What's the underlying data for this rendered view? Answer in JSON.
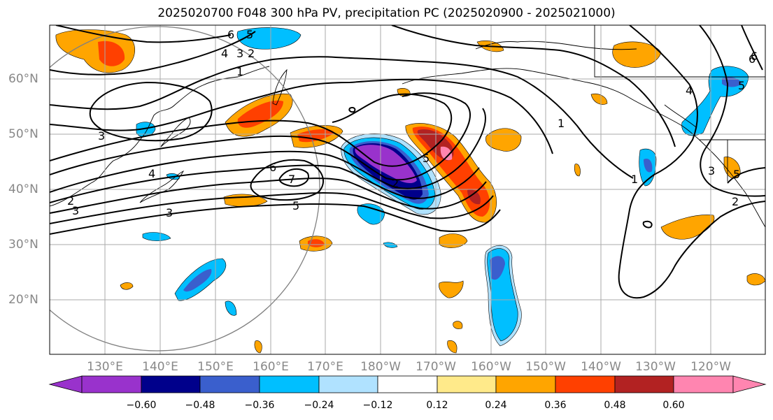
{
  "title": "2025020700 F048 300 hPa PV, precipitation PC (2025020900 - 2025021000)",
  "lat_labels": [
    "60°N",
    "50°N",
    "40°N",
    "30°N",
    "20°N"
  ],
  "lon_labels": [
    "130°E",
    "140°E",
    "150°E",
    "160°E",
    "170°E",
    "180°W",
    "170°W",
    "160°W",
    "150°W",
    "140°W",
    "130°W",
    "120°W"
  ],
  "colorbar": {
    "ticks": [
      "−0.60",
      "−0.48",
      "−0.36",
      "−0.24",
      "−0.12",
      "0.12",
      "0.24",
      "0.36",
      "0.48",
      "0.60"
    ],
    "colors": [
      "#9932cc",
      "#00008b",
      "#3a5fcd",
      "#00bfff",
      "#b0e2ff",
      "#ffffff",
      "#ffea8a",
      "#ffa500",
      "#ff4000",
      "#b22222",
      "#ff85b0"
    ]
  },
  "contour_labels": [
    "6",
    "5",
    "4",
    "3",
    "2",
    "1",
    "3",
    "6",
    "5",
    "4",
    "3",
    "2",
    "3",
    "2",
    "7",
    "5",
    "1",
    "1",
    "2",
    "6",
    "5",
    "4",
    "3",
    "5",
    "6"
  ]
}
